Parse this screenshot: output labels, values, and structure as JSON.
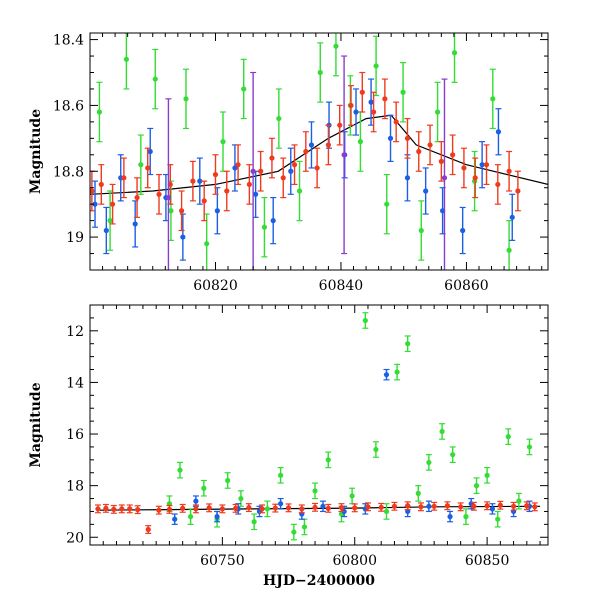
{
  "chart_data": [
    {
      "panel": "top",
      "type": "scatter",
      "title": "",
      "xlabel": "",
      "ylabel": "Magnitude",
      "xlim": [
        60800,
        60873
      ],
      "ylim": [
        19.1,
        18.38
      ],
      "y_inverted": true,
      "xticks": [
        60820,
        60840,
        60860
      ],
      "yticks": [
        18.4,
        18.6,
        18.8,
        19
      ],
      "ytick_labels": [
        "18.4",
        "18.6",
        "18.8",
        "19"
      ],
      "colors": {
        "green": "#33dd33",
        "blue": "#1a5fe6",
        "red": "#f03a1e",
        "purple": "#8a3ccc",
        "model": "#000000"
      },
      "model_line": {
        "x": [
          60800,
          60810,
          60820,
          60830,
          60838,
          60844,
          60848,
          60852,
          60860,
          60873
        ],
        "y": [
          18.87,
          18.86,
          18.84,
          18.8,
          18.7,
          18.64,
          18.63,
          18.72,
          18.78,
          18.84
        ]
      },
      "series": [
        {
          "color": "green",
          "err": 0.09,
          "x": [
            60801.5,
            60803.2,
            60805.8,
            60808.1,
            60810.4,
            60812.9,
            60815.3,
            60818.6,
            60821.2,
            60824.5,
            60827.8,
            60830.1,
            60833.4,
            60836.7,
            60839.2,
            60841.5,
            60843.1,
            60845.6,
            60847.3,
            60849.9,
            60852.8,
            60855.4,
            60858.1,
            60861.3,
            60864.2,
            60866.8
          ],
          "y": [
            18.62,
            18.95,
            18.46,
            18.78,
            18.52,
            18.92,
            18.58,
            19.02,
            18.71,
            18.55,
            18.97,
            18.64,
            18.86,
            18.5,
            18.42,
            18.6,
            18.71,
            18.48,
            18.9,
            18.56,
            18.98,
            18.62,
            18.44,
            18.83,
            18.58,
            19.04
          ]
        },
        {
          "color": "blue",
          "err": 0.07,
          "x": [
            60800.8,
            60802.6,
            60804.9,
            60807.2,
            60809.6,
            60812.1,
            60814.8,
            60817.5,
            60820.3,
            60823.1,
            60826.4,
            60829.2,
            60832.0,
            60835.3,
            60838.1,
            60840.6,
            60842.4,
            60844.8,
            60847.9,
            60850.6,
            60853.5,
            60856.2,
            60859.4,
            60862.5,
            60865.1,
            60867.3
          ],
          "y": [
            18.9,
            18.98,
            18.82,
            18.96,
            18.74,
            18.88,
            19.0,
            18.83,
            18.92,
            18.79,
            18.87,
            18.95,
            18.8,
            18.72,
            18.66,
            18.75,
            18.62,
            18.59,
            18.7,
            18.82,
            18.86,
            18.92,
            18.98,
            18.78,
            18.68,
            18.94
          ]
        },
        {
          "color": "red",
          "err": 0.06,
          "x": [
            60800.3,
            60801.8,
            60803.6,
            60805.4,
            60807.5,
            60809.2,
            60811.0,
            60812.8,
            60814.6,
            60816.4,
            60818.2,
            60820.0,
            60821.8,
            60823.6,
            60825.4,
            60827.2,
            60829.0,
            60830.8,
            60832.6,
            60834.4,
            60836.2,
            60838.0,
            60839.8,
            60841.6,
            60843.4,
            60845.2,
            60847.0,
            60848.8,
            60850.6,
            60852.4,
            60854.2,
            60856.0,
            60857.8,
            60859.6,
            60861.4,
            60863.2,
            60865.0,
            60866.8,
            60868.2
          ],
          "y": [
            18.86,
            18.84,
            18.9,
            18.82,
            18.88,
            18.79,
            18.87,
            18.84,
            18.92,
            18.83,
            18.89,
            18.81,
            18.86,
            18.78,
            18.84,
            18.8,
            18.76,
            18.82,
            18.78,
            18.74,
            18.79,
            18.72,
            18.66,
            18.6,
            18.56,
            18.62,
            18.58,
            18.65,
            18.7,
            18.74,
            18.72,
            18.77,
            18.75,
            18.79,
            18.82,
            18.78,
            18.84,
            18.8,
            18.86
          ]
        },
        {
          "color": "purple",
          "err": 0.3,
          "x": [
            60812.5,
            60826.0,
            60840.5,
            60856.5
          ],
          "y": [
            18.88,
            18.8,
            18.75,
            18.82
          ]
        }
      ]
    },
    {
      "panel": "bottom",
      "type": "scatter",
      "title": "",
      "xlabel": "HJD−2400000",
      "ylabel": "Magnitude",
      "xlim": [
        60700,
        60873
      ],
      "ylim": [
        20.3,
        11.0
      ],
      "y_inverted": true,
      "xticks": [
        60750,
        60800,
        60850
      ],
      "yticks": [
        12,
        14,
        16,
        18,
        20
      ],
      "ytick_labels": [
        "12",
        "14",
        "16",
        "18",
        "20"
      ],
      "colors": {
        "green": "#33dd33",
        "blue": "#1a5fe6",
        "red": "#f03a1e",
        "model": "#000000"
      },
      "model_line": {
        "x": [
          60703,
          60730,
          60760,
          60800,
          60830,
          60870
        ],
        "y": [
          18.95,
          18.93,
          18.9,
          18.87,
          18.82,
          18.8
        ]
      },
      "series": [
        {
          "color": "green",
          "err": 0.3,
          "x": [
            60730,
            60734,
            60738,
            60743,
            60748,
            60752,
            60757,
            60762,
            60767,
            60772,
            60777,
            60781,
            60785,
            60790,
            60795,
            60799,
            60804,
            60808,
            60812,
            60816,
            60820,
            60824,
            60828,
            60833,
            60837,
            60842,
            60846,
            60850,
            60854,
            60858,
            60862,
            60866
          ],
          "y": [
            18.7,
            17.4,
            19.2,
            18.1,
            19.3,
            17.8,
            18.5,
            19.4,
            18.9,
            17.6,
            19.8,
            19.6,
            18.2,
            17.0,
            19.1,
            18.4,
            11.6,
            16.6,
            19.0,
            13.6,
            12.5,
            18.3,
            17.1,
            15.9,
            16.8,
            19.2,
            18.0,
            17.6,
            19.3,
            16.1,
            18.6,
            16.5
          ]
        },
        {
          "color": "blue",
          "err": 0.2,
          "x": [
            60732,
            60740,
            60748,
            60756,
            60764,
            60772,
            60780,
            60788,
            60796,
            60804,
            60812,
            60820,
            60828,
            60836,
            60844,
            60852,
            60860,
            60866
          ],
          "y": [
            19.3,
            18.6,
            19.2,
            18.9,
            19.0,
            18.7,
            19.1,
            18.8,
            19.0,
            18.9,
            13.7,
            19.0,
            18.8,
            19.2,
            18.7,
            18.9,
            19.0,
            18.8
          ]
        },
        {
          "color": "red",
          "err": 0.15,
          "x": [
            60703,
            60706,
            60709,
            60712,
            60715,
            60718,
            60722,
            60726,
            60730,
            60735,
            60740,
            60745,
            60750,
            60755,
            60760,
            60765,
            60770,
            60775,
            60780,
            60785,
            60790,
            60795,
            60800,
            60805,
            60810,
            60815,
            60820,
            60825,
            60830,
            60835,
            60840,
            60845,
            60850,
            60855,
            60860,
            60865,
            60868
          ],
          "y": [
            18.9,
            18.88,
            18.92,
            18.9,
            18.9,
            18.93,
            19.7,
            18.95,
            18.92,
            18.88,
            18.9,
            18.86,
            18.9,
            18.88,
            18.85,
            18.9,
            18.87,
            18.86,
            18.9,
            18.84,
            18.88,
            18.85,
            18.86,
            18.82,
            18.84,
            18.8,
            18.78,
            18.82,
            18.8,
            18.78,
            18.82,
            18.8,
            18.78,
            18.76,
            18.8,
            18.78,
            18.82
          ]
        }
      ]
    }
  ]
}
